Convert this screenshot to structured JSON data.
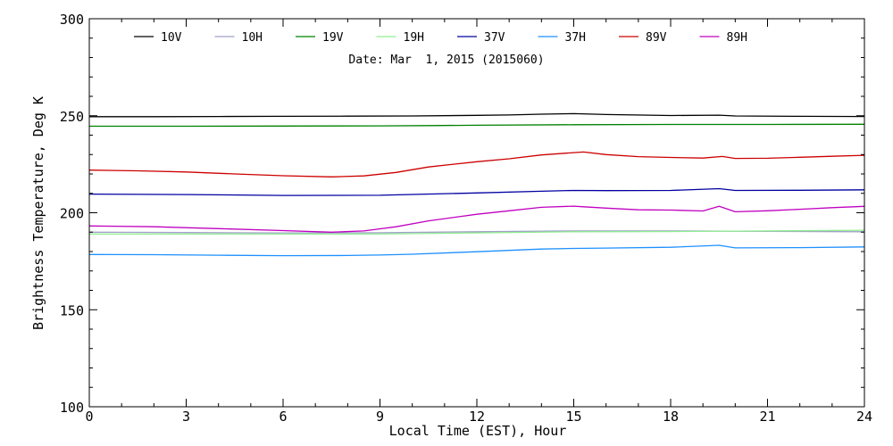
{
  "chart_data": {
    "type": "line",
    "title": "",
    "subtitle": "Date: Mar  1, 2015 (2015060)",
    "xlabel": "Local Time (EST), Hour",
    "ylabel": "Brightness Temperature, Deg K",
    "xlim": [
      0,
      24
    ],
    "ylim": [
      100,
      300
    ],
    "xticks": [
      0,
      3,
      6,
      9,
      12,
      15,
      18,
      21,
      24
    ],
    "yticks": [
      100,
      150,
      200,
      250,
      300
    ],
    "grid": false,
    "legend_position": "top",
    "series": [
      {
        "name": "10V",
        "color": "#000000",
        "x": [
          0,
          2,
          4,
          6,
          8,
          10,
          12,
          13,
          14,
          15,
          16,
          18,
          19.5,
          20,
          22,
          24
        ],
        "y": [
          249.5,
          249.5,
          249.6,
          249.7,
          249.8,
          249.9,
          250.2,
          250.4,
          250.8,
          251.1,
          250.6,
          250.1,
          250.3,
          249.9,
          249.7,
          249.6
        ]
      },
      {
        "name": "10H",
        "color": "#a0a0c8",
        "x": [
          0,
          3,
          6,
          9,
          12,
          15,
          18,
          21,
          24
        ],
        "y": [
          190.0,
          189.8,
          189.6,
          189.7,
          190.2,
          190.6,
          190.6,
          190.4,
          190.2
        ]
      },
      {
        "name": "19V",
        "color": "#008000",
        "x": [
          0,
          3,
          6,
          9,
          10.5,
          12,
          15,
          18,
          21,
          24
        ],
        "y": [
          244.6,
          244.6,
          244.7,
          244.8,
          244.9,
          245.1,
          245.4,
          245.5,
          245.5,
          245.6
        ]
      },
      {
        "name": "19H",
        "color": "#90ee90",
        "x": [
          0,
          3,
          6,
          9,
          12,
          15,
          18,
          21,
          24
        ],
        "y": [
          189.0,
          189.0,
          189.0,
          189.0,
          189.6,
          190.2,
          190.3,
          190.6,
          191.0
        ]
      },
      {
        "name": "37V",
        "color": "#0000a0",
        "x": [
          0,
          3,
          6,
          9,
          12,
          14,
          15,
          16,
          18,
          19.5,
          20,
          22,
          24
        ],
        "y": [
          209.6,
          209.4,
          208.9,
          209.0,
          210.2,
          211.1,
          211.5,
          211.4,
          211.5,
          212.4,
          211.5,
          211.6,
          211.8
        ]
      },
      {
        "name": "37H",
        "color": "#1e90ff",
        "x": [
          0,
          2,
          4,
          6,
          8,
          9,
          10,
          12,
          14,
          15,
          16,
          18,
          19.5,
          20,
          22,
          24
        ],
        "y": [
          178.5,
          178.4,
          178.1,
          177.9,
          178.0,
          178.2,
          178.6,
          179.9,
          181.3,
          181.6,
          181.8,
          182.2,
          183.2,
          181.9,
          182.0,
          182.4
        ]
      },
      {
        "name": "89V",
        "color": "#cc0000",
        "x": [
          0,
          1.5,
          3,
          4.5,
          6,
          7.5,
          8.5,
          9.5,
          10.5,
          12,
          13,
          14,
          15,
          15.3,
          16,
          17,
          18,
          19,
          19.6,
          20,
          21,
          22,
          23,
          24
        ],
        "y": [
          222.0,
          221.6,
          221.0,
          220.0,
          219.1,
          218.5,
          219.0,
          220.8,
          223.6,
          226.3,
          227.8,
          229.8,
          231.0,
          231.3,
          230.0,
          228.9,
          228.5,
          228.2,
          229.0,
          228.0,
          228.1,
          228.6,
          229.1,
          229.6
        ]
      },
      {
        "name": "89H",
        "color": "#c000c0",
        "x": [
          0,
          2,
          4,
          6,
          7.5,
          8.5,
          9.5,
          10.5,
          12,
          13,
          14,
          15,
          15.3,
          16,
          17,
          18,
          19,
          19.5,
          20,
          21,
          22,
          23,
          24
        ],
        "y": [
          193.2,
          192.8,
          191.8,
          190.8,
          190.0,
          190.6,
          192.8,
          195.8,
          199.2,
          201.0,
          202.8,
          203.4,
          203.1,
          202.4,
          201.5,
          201.4,
          200.9,
          203.3,
          200.5,
          201.0,
          201.8,
          202.6,
          203.3
        ]
      }
    ]
  }
}
